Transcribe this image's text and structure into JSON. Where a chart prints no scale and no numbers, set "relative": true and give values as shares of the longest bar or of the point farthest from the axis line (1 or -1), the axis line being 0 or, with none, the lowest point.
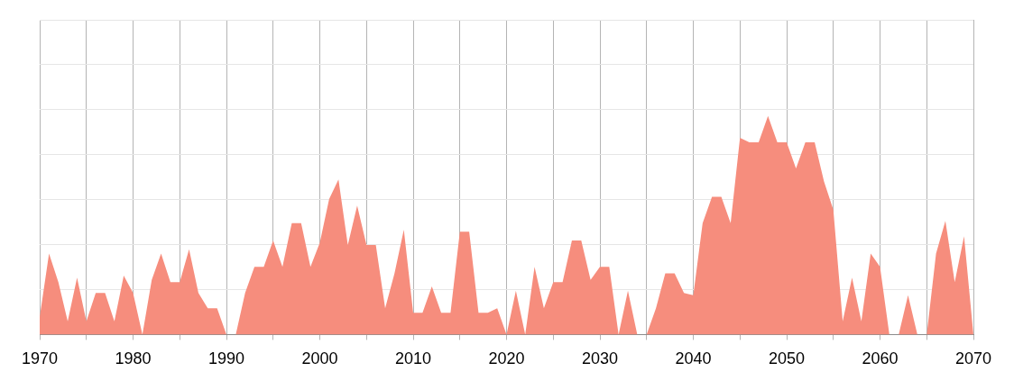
{
  "chart_data": {
    "type": "area",
    "relative": true,
    "color": "#f68d7d",
    "grid": true,
    "xlim": [
      1970,
      2070
    ],
    "xticks": [
      1970,
      {
        "value": 1975,
        "label": null
      },
      1980,
      {
        "value": 1985,
        "label": null
      },
      1990,
      {
        "value": 1995,
        "label": null
      },
      2000,
      {
        "value": 2005,
        "label": null
      },
      2010,
      {
        "value": 2015,
        "label": null
      },
      2020,
      {
        "value": 2025,
        "label": null
      },
      2030,
      {
        "value": 2035,
        "label": null
      },
      2040,
      {
        "value": 2045,
        "label": null
      },
      2050,
      {
        "value": 2055,
        "label": null
      },
      2060,
      {
        "value": 2065,
        "label": null
      },
      2070
    ],
    "x": [
      1970,
      1971,
      1972,
      1973,
      1974,
      1975,
      1976,
      1977,
      1978,
      1979,
      1980,
      1981,
      1982,
      1983,
      1984,
      1985,
      1986,
      1987,
      1988,
      1989,
      1990,
      1991,
      1992,
      1993,
      1994,
      1995,
      1996,
      1997,
      1998,
      1999,
      2000,
      2001,
      2002,
      2003,
      2004,
      2005,
      2006,
      2007,
      2008,
      2009,
      2010,
      2011,
      2012,
      2013,
      2014,
      2015,
      2016,
      2017,
      2018,
      2019,
      2020,
      2021,
      2022,
      2023,
      2024,
      2025,
      2026,
      2027,
      2028,
      2029,
      2030,
      2031,
      2032,
      2033,
      2034,
      2035,
      2036,
      2037,
      2038,
      2039,
      2040,
      2041,
      2042,
      2043,
      2044,
      2045,
      2046,
      2047,
      2048,
      2049,
      2050,
      2051,
      2052,
      2053,
      2054,
      2055,
      2056,
      2057,
      2058,
      2059,
      2060,
      2061,
      2062,
      2063,
      2064,
      2065,
      2066,
      2067,
      2068,
      2069,
      2070
    ],
    "values": [
      0.08,
      0.37,
      0.24,
      0.06,
      0.26,
      0.06,
      0.19,
      0.19,
      0.06,
      0.27,
      0.19,
      0,
      0.25,
      0.37,
      0.24,
      0.24,
      0.39,
      0.19,
      0.12,
      0.12,
      0,
      0,
      0.19,
      0.31,
      0.31,
      0.43,
      0.31,
      0.51,
      0.51,
      0.31,
      0.42,
      0.62,
      0.71,
      0.41,
      0.59,
      0.41,
      0.41,
      0.12,
      0.28,
      0.48,
      0.1,
      0.1,
      0.22,
      0.1,
      0.1,
      0.47,
      0.47,
      0.1,
      0.1,
      0.12,
      0,
      0.2,
      0,
      0.31,
      0.12,
      0.24,
      0.24,
      0.43,
      0.43,
      0.25,
      0.31,
      0.31,
      0,
      0.2,
      0,
      0,
      0.12,
      0.28,
      0.28,
      0.19,
      0.18,
      0.51,
      0.63,
      0.63,
      0.51,
      0.9,
      0.88,
      0.88,
      1,
      0.88,
      0.88,
      0.76,
      0.88,
      0.88,
      0.7,
      0.57,
      0.06,
      0.26,
      0.06,
      0.37,
      0.31,
      0,
      0,
      0.18,
      0,
      0,
      0.37,
      0.52,
      0.24,
      0.45,
      0
    ]
  }
}
